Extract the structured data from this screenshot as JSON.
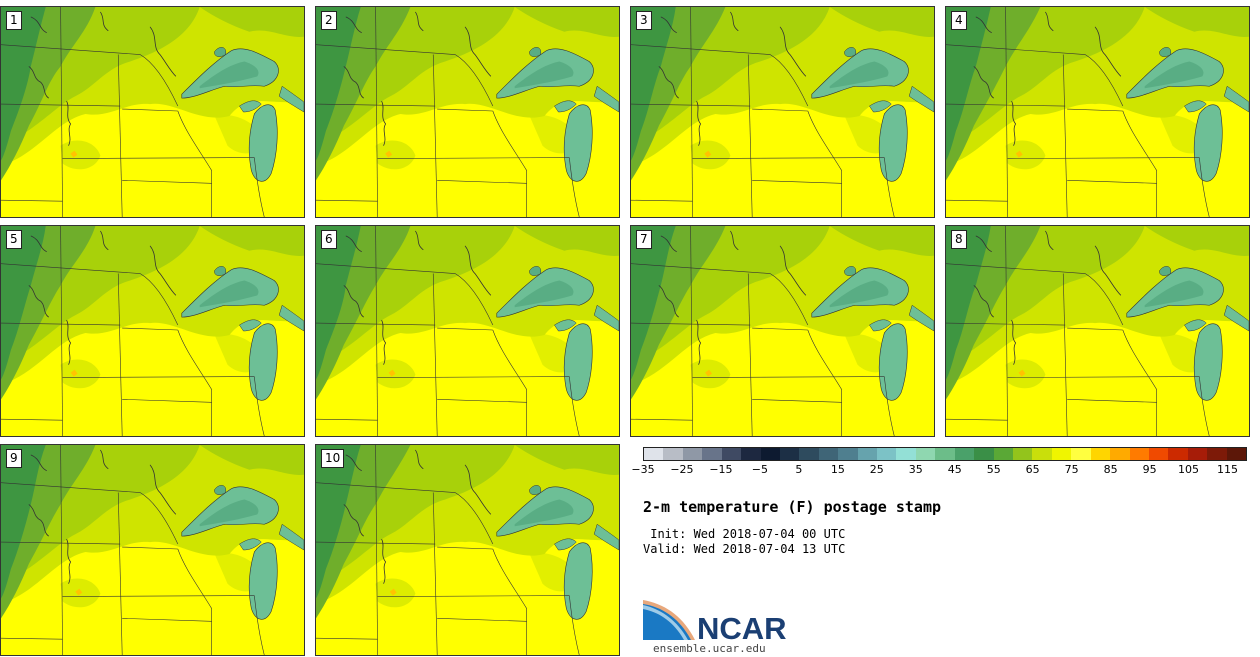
{
  "figure": {
    "title": "2-m temperature (F) postage stamp",
    "init": " Init: Wed 2018-07-04 00 UTC",
    "valid": "Valid: Wed 2018-07-04 13 UTC",
    "website": "ensemble.ucar.edu",
    "logo_text": "NCAR"
  },
  "members": [
    "1",
    "2",
    "3",
    "4",
    "5",
    "6",
    "7",
    "8",
    "9",
    "10"
  ],
  "colorbar": {
    "ticks": [
      "−35",
      "−25",
      "−15",
      "−5",
      "5",
      "15",
      "25",
      "35",
      "45",
      "55",
      "65",
      "75",
      "85",
      "95",
      "105",
      "115"
    ],
    "range": [
      -35,
      120
    ],
    "colors": [
      "#dfe3ea",
      "#b8bdc6",
      "#8f98a6",
      "#68748a",
      "#3f4a63",
      "#1d2840",
      "#0d1a30",
      "#1c2f45",
      "#2e4b5e",
      "#3f6577",
      "#4f7f8f",
      "#66a3ad",
      "#7cc2c6",
      "#93e0d6",
      "#8fd7b0",
      "#6cbd89",
      "#4aa16a",
      "#3a8f47",
      "#5aa836",
      "#93c41c",
      "#c9df0b",
      "#f0f500",
      "#ffff40",
      "#ffd500",
      "#ffaa00",
      "#ff7b00",
      "#f04a00",
      "#cc2a00",
      "#a61c08",
      "#7d1a08",
      "#5c1708"
    ],
    "map_palette": {
      "water": "#6dbf96",
      "water_deep": "#59ad84",
      "dark_green": "#3e9641",
      "green": "#6fae2b",
      "yellow_green": "#a8d10a",
      "lime": "#cfe400",
      "yellow": "#ffff00",
      "orange": "#ffc400",
      "border": "#333333"
    }
  }
}
